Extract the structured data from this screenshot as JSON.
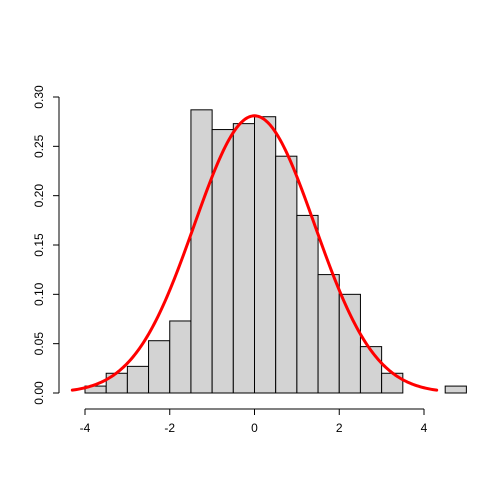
{
  "chart_data": {
    "type": "bar",
    "title": "",
    "xlabel": "",
    "ylabel": "",
    "xlim": [
      -4.2,
      4.6
    ],
    "ylim": [
      0,
      0.3
    ],
    "x_ticks": [
      -4,
      -2,
      0,
      2,
      4
    ],
    "x_tick_labels": [
      "-4",
      "-2",
      "0",
      "2",
      "4"
    ],
    "y_ticks": [
      0,
      0.05,
      0.1,
      0.15,
      0.2,
      0.25,
      0.3
    ],
    "y_tick_labels": [
      "0.00",
      "0.05",
      "0.10",
      "0.15",
      "0.20",
      "0.25",
      "0.30"
    ],
    "grid": false,
    "bin_width": 0.5,
    "bins": [
      {
        "start": -4.0,
        "end": -3.5,
        "density": 0.007
      },
      {
        "start": -3.5,
        "end": -3.0,
        "density": 0.02
      },
      {
        "start": -3.0,
        "end": -2.5,
        "density": 0.027
      },
      {
        "start": -2.5,
        "end": -2.0,
        "density": 0.053
      },
      {
        "start": -2.0,
        "end": -1.5,
        "density": 0.073
      },
      {
        "start": -1.5,
        "end": -1.0,
        "density": 0.287
      },
      {
        "start": -1.0,
        "end": -0.5,
        "density": 0.267
      },
      {
        "start": -0.5,
        "end": 0.0,
        "density": 0.273
      },
      {
        "start": 0.0,
        "end": 0.5,
        "density": 0.28
      },
      {
        "start": 0.5,
        "end": 1.0,
        "density": 0.24
      },
      {
        "start": 1.0,
        "end": 1.5,
        "density": 0.18
      },
      {
        "start": 1.5,
        "end": 2.0,
        "density": 0.12
      },
      {
        "start": 2.0,
        "end": 2.5,
        "density": 0.1
      },
      {
        "start": 2.5,
        "end": 3.0,
        "density": 0.047
      },
      {
        "start": 3.0,
        "end": 3.5,
        "density": 0.02
      },
      {
        "start": 3.5,
        "end": 4.0,
        "density": 0.0
      },
      {
        "start": 4.0,
        "end": 4.5,
        "density": 0.0
      },
      {
        "start": 4.5,
        "end": 5.0,
        "density": 0.007
      }
    ],
    "overlay_curve": {
      "type": "normal-density",
      "mean": 0,
      "sd": 1.42,
      "x_range": [
        -4.3,
        4.3
      ],
      "color": "#ff0000"
    },
    "bar_fill": "#d3d3d3",
    "bar_stroke": "#000000"
  }
}
